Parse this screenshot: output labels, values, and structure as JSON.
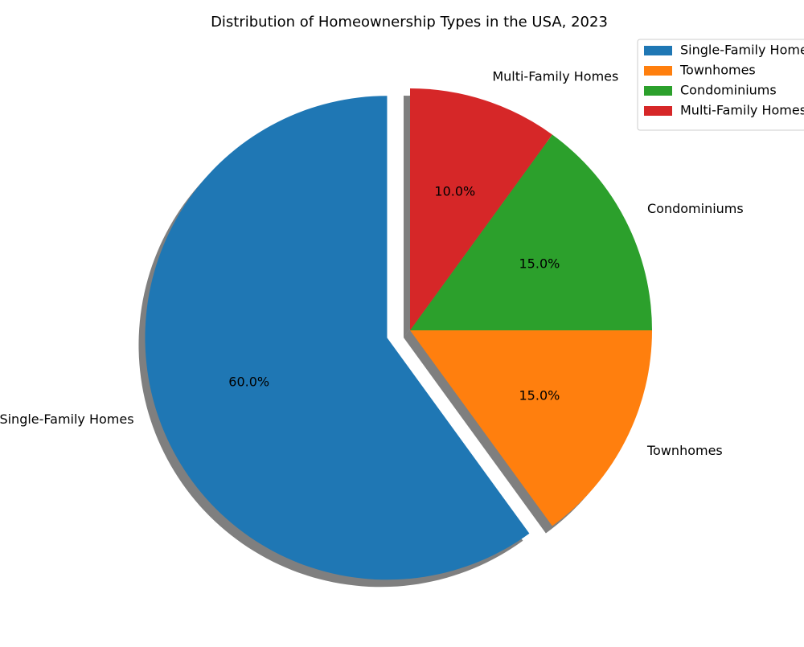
{
  "chart_data": {
    "type": "pie",
    "title": "Distribution of Homeownership Types in the USA, 2023",
    "categories": [
      "Single-Family Homes",
      "Townhomes",
      "Condominiums",
      "Multi-Family Homes"
    ],
    "values": [
      60.0,
      15.0,
      15.0,
      10.0
    ],
    "value_labels": [
      "60.0%",
      "15.0%",
      "15.0%",
      "10.0%"
    ],
    "colors": [
      "#1f77b4",
      "#ff7f0e",
      "#2ca02c",
      "#d62728"
    ],
    "exploded": [
      "Single-Family Homes"
    ],
    "shadow": true,
    "start_angle_deg": 90,
    "direction": "counterclockwise",
    "legend": {
      "placement": "top-right",
      "entries": [
        "Single-Family Homes",
        "Townhomes",
        "Condominiums",
        "Multi-Family Homes"
      ]
    }
  }
}
